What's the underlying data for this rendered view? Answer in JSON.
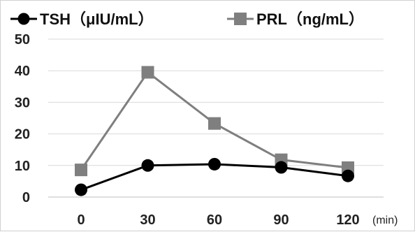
{
  "chart_data": {
    "type": "line",
    "title": "",
    "xlabel": "",
    "ylabel": "",
    "x_unit": "(min)",
    "categories": [
      "0",
      "30",
      "60",
      "90",
      "120"
    ],
    "x": [
      0,
      30,
      60,
      90,
      120
    ],
    "ylim": [
      0,
      50
    ],
    "yticks": [
      "0",
      "10",
      "20",
      "30",
      "40",
      "50"
    ],
    "grid": "horizontal",
    "legend_position": "top",
    "series": [
      {
        "name": "TSH（μIU/mL）",
        "values": [
          2.3,
          10.0,
          10.4,
          9.4,
          6.7
        ],
        "color": "#000000",
        "marker": "circle"
      },
      {
        "name": "PRL（ng/mL）",
        "values": [
          8.6,
          39.5,
          23.3,
          11.8,
          9.3
        ],
        "color": "#7f7f7f",
        "marker": "square"
      }
    ]
  }
}
